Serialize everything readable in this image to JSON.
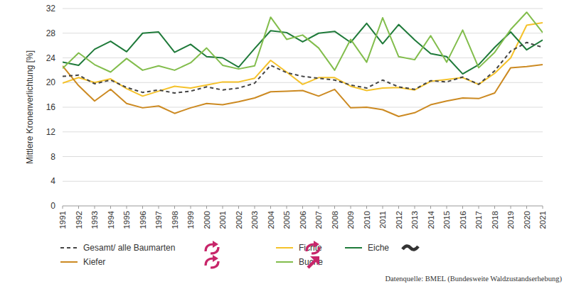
{
  "chart_data": {
    "type": "line",
    "y_label": "Mittlere Kronenverlichtung [%]",
    "annotations": [
      "Datenquelle: BMEL (Bundesweite Waldzustandserhebung)"
    ],
    "x": [
      1991,
      1992,
      1993,
      1994,
      1995,
      1996,
      1997,
      1998,
      1999,
      2000,
      2001,
      2002,
      2003,
      2004,
      2005,
      2006,
      2007,
      2008,
      2009,
      2010,
      2011,
      2012,
      2013,
      2014,
      2015,
      2016,
      2017,
      2018,
      2019,
      2020,
      2021
    ],
    "xlim": [
      1991,
      2021
    ],
    "xticks": [
      1991,
      1992,
      1993,
      1994,
      1995,
      1996,
      1997,
      1998,
      1999,
      2000,
      2001,
      2002,
      2003,
      2004,
      2005,
      2006,
      2007,
      2008,
      2009,
      2010,
      2011,
      2012,
      2013,
      2014,
      2015,
      2016,
      2017,
      2018,
      2019,
      2020,
      2021
    ],
    "ylim": [
      0,
      32
    ],
    "yticks": [
      0,
      4,
      8,
      12,
      16,
      20,
      24,
      28,
      32
    ],
    "grid": true,
    "legend": "bottom",
    "series": [
      {
        "name": "Gesamt/ alle Baumarten",
        "color": "#444444",
        "line_style": "dashed",
        "values": [
          21.0,
          21.2,
          19.8,
          20.4,
          19.2,
          18.4,
          18.8,
          18.3,
          18.6,
          19.3,
          18.8,
          19.1,
          19.9,
          22.8,
          21.6,
          21.0,
          20.7,
          20.4,
          19.6,
          19.1,
          20.4,
          19.3,
          18.9,
          20.3,
          20.1,
          20.9,
          19.7,
          21.9,
          25.1,
          26.5,
          25.7
        ]
      },
      {
        "name": "Fichte",
        "color": "#f5c22b",
        "line_style": "solid",
        "values": [
          19.9,
          20.8,
          20.0,
          20.6,
          19.0,
          17.8,
          18.6,
          19.4,
          19.1,
          19.6,
          20.1,
          20.1,
          20.7,
          23.6,
          21.7,
          19.7,
          20.8,
          20.8,
          19.4,
          18.7,
          19.1,
          19.2,
          18.8,
          20.2,
          20.5,
          20.8,
          19.7,
          21.5,
          24.0,
          29.3,
          29.7
        ]
      },
      {
        "name": "Eiche",
        "color": "#1f7a3a",
        "line_style": "solid",
        "values": [
          23.3,
          22.8,
          25.4,
          26.7,
          25.0,
          28.0,
          28.2,
          24.9,
          26.2,
          24.2,
          24.0,
          22.5,
          25.5,
          28.4,
          28.1,
          26.6,
          28.0,
          28.3,
          26.5,
          29.6,
          26.3,
          29.4,
          26.9,
          24.7,
          24.2,
          21.4,
          22.9,
          25.7,
          28.2,
          25.3,
          26.9
        ]
      },
      {
        "name": "Kiefer",
        "color": "#cc8a22",
        "line_style": "solid",
        "values": [
          22.7,
          19.5,
          17.0,
          18.9,
          16.6,
          15.9,
          16.2,
          15.0,
          15.9,
          16.6,
          16.4,
          16.9,
          17.5,
          18.5,
          18.6,
          18.7,
          17.8,
          18.9,
          15.9,
          16.0,
          15.6,
          14.5,
          15.1,
          16.4,
          17.0,
          17.5,
          17.4,
          18.3,
          22.4,
          22.6,
          22.9
        ]
      },
      {
        "name": "Buche",
        "color": "#82bd4c",
        "line_style": "solid",
        "values": [
          22.3,
          24.8,
          22.9,
          21.7,
          23.9,
          22.0,
          22.7,
          22.0,
          23.2,
          25.6,
          22.8,
          22.2,
          22.7,
          30.6,
          27.0,
          27.7,
          25.6,
          22.0,
          27.0,
          23.3,
          30.5,
          24.2,
          23.7,
          27.6,
          23.3,
          28.5,
          22.4,
          24.9,
          28.6,
          31.4,
          28.1
        ]
      }
    ]
  }
}
